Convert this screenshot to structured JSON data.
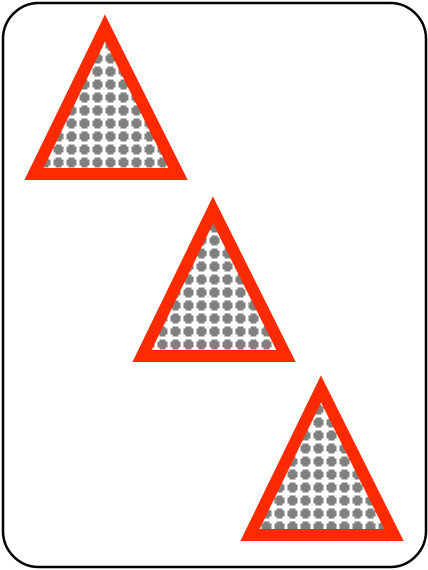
{
  "card": {
    "type": "set-card",
    "count": 3,
    "shape": "triangle",
    "shading": "patterned",
    "color": "red",
    "colors": {
      "card_background": "#ffffff",
      "card_border": "#000000",
      "shape_outline": "#ff2a00",
      "pattern_dots": "#808080",
      "pattern_background": "#ffffff"
    }
  }
}
